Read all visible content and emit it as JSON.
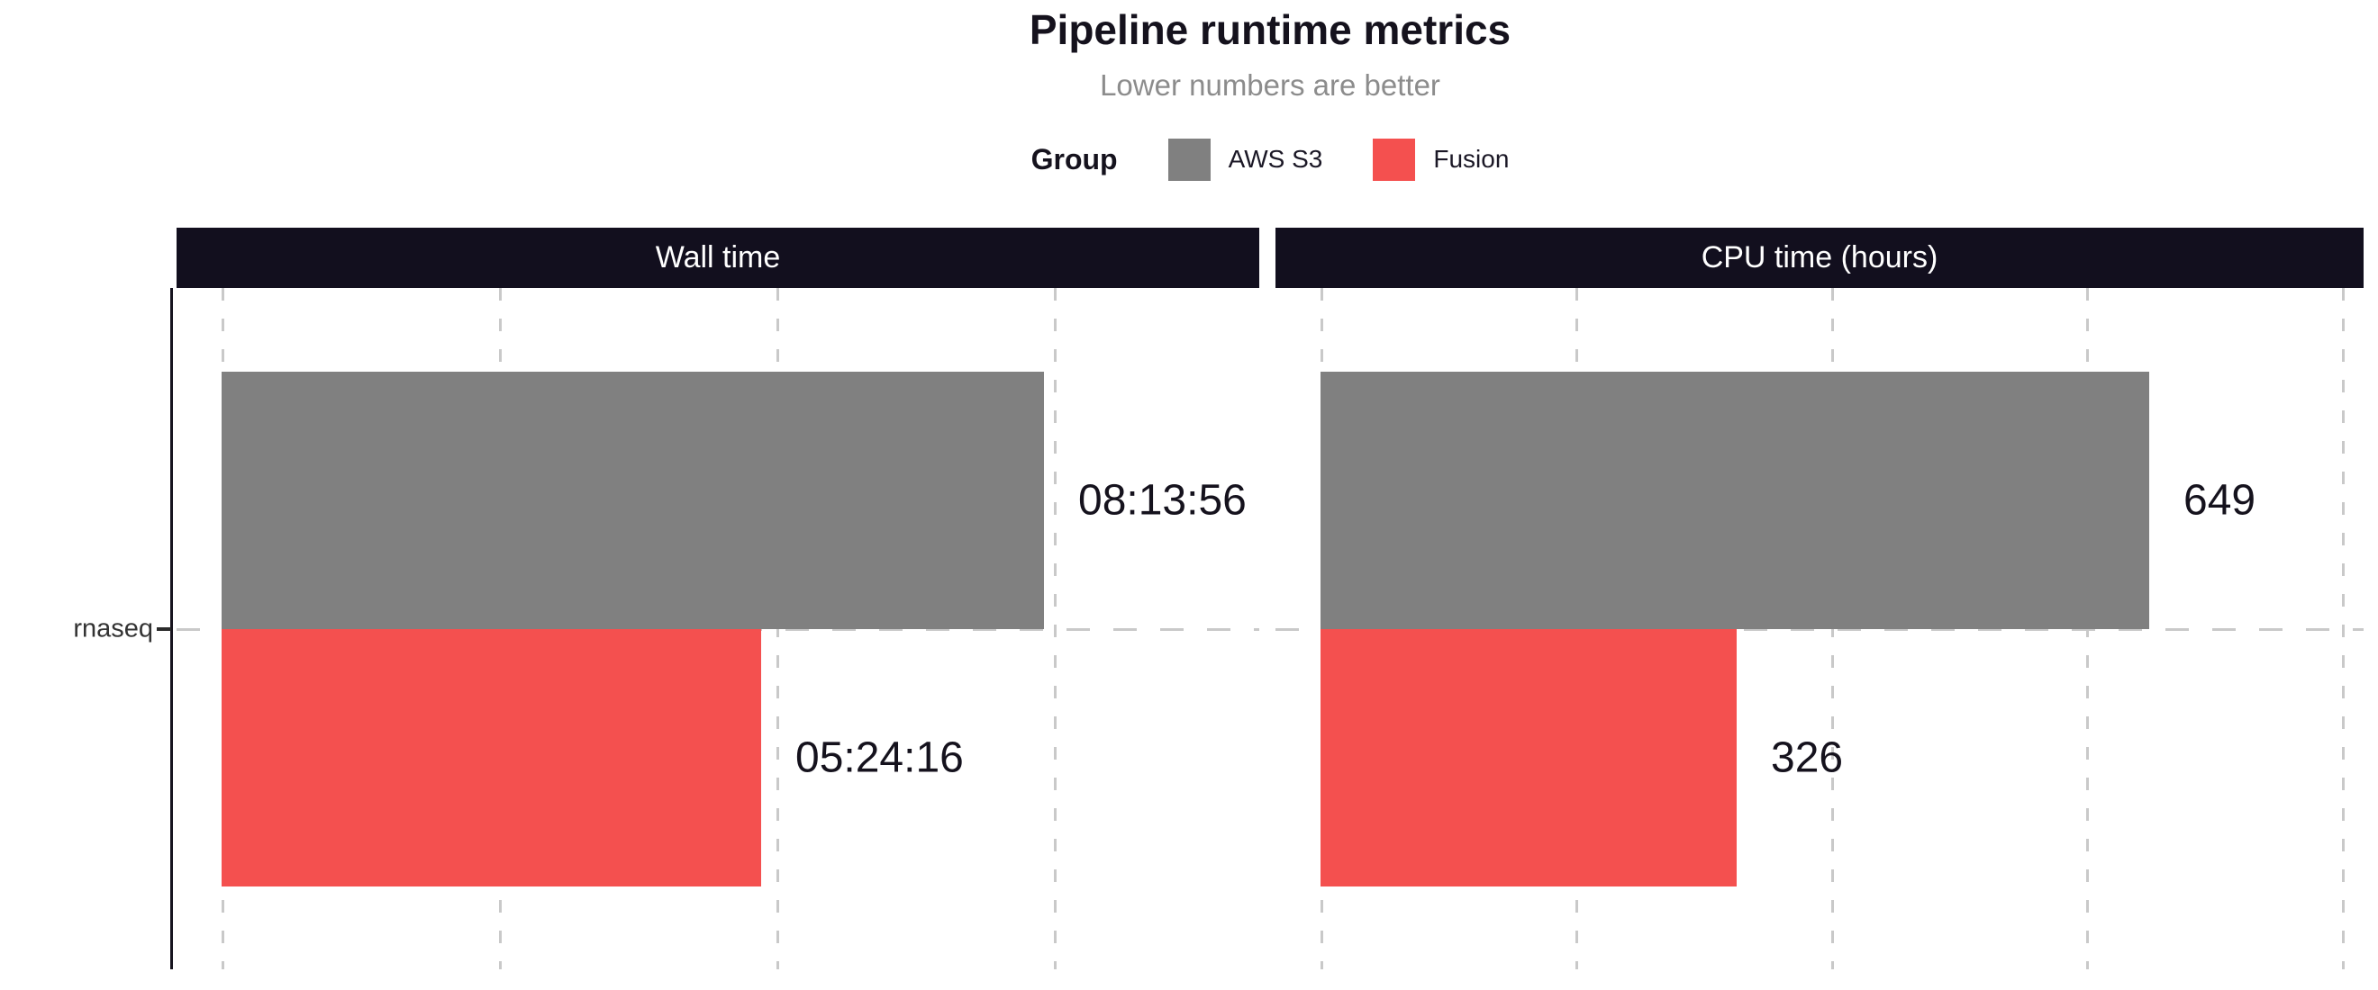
{
  "chart_data": {
    "type": "bar",
    "orientation": "horizontal",
    "title": "Pipeline runtime metrics",
    "subtitle": "Lower numbers are better",
    "category_axis": {
      "categories": [
        "rnaseq"
      ]
    },
    "legend": {
      "title": "Group",
      "position": "top-center",
      "entries": [
        {
          "label": "AWS S3",
          "color": "#808080"
        },
        {
          "label": "Fusion",
          "color": "#f4504f"
        }
      ]
    },
    "colors": {
      "strip_background": "#120f1e",
      "strip_text": "#ffffff",
      "gridline": "#c9c9c9",
      "axis_line": "#17141f",
      "value_label": "#15121d"
    },
    "grid": "dashed",
    "panels": [
      {
        "title": "Wall time",
        "unit": "seconds",
        "axis_max": 37400,
        "gridline_values": [
          0,
          10000,
          20000,
          30000
        ],
        "series": [
          {
            "group": "AWS S3",
            "value": 29636,
            "label": "08:13:56",
            "color": "#808080"
          },
          {
            "group": "Fusion",
            "value": 19456,
            "label": "05:24:16",
            "color": "#f4504f"
          }
        ]
      },
      {
        "title": "CPU time (hours)",
        "unit": "hours",
        "axis_max": 817,
        "gridline_values": [
          0,
          200,
          400,
          600,
          800
        ],
        "series": [
          {
            "group": "AWS S3",
            "value": 649,
            "label": "649",
            "color": "#808080"
          },
          {
            "group": "Fusion",
            "value": 326,
            "label": "326",
            "color": "#f4504f"
          }
        ]
      }
    ]
  }
}
